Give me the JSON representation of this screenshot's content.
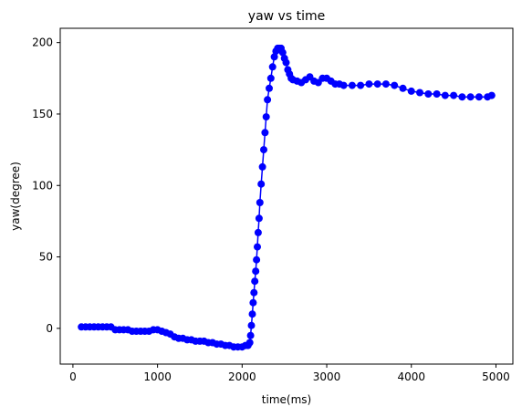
{
  "chart_data": {
    "type": "line",
    "title": "yaw vs time",
    "xlabel": "time(ms)",
    "ylabel": "yaw(degree)",
    "xlim": [
      -150,
      5200
    ],
    "ylim": [
      -25,
      210
    ],
    "xticks": [
      0,
      1000,
      2000,
      3000,
      4000,
      5000
    ],
    "yticks": [
      0,
      50,
      100,
      150,
      200
    ],
    "grid": false,
    "legend": null,
    "marker": "circle",
    "color": "#0000ff",
    "series": [
      {
        "x": [
          100,
          150,
          200,
          250,
          300,
          350,
          400,
          450,
          500,
          550,
          600,
          650,
          700,
          750,
          800,
          850,
          900,
          950,
          1000,
          1050,
          1100,
          1150,
          1200,
          1250,
          1300,
          1350,
          1400,
          1450,
          1500,
          1550,
          1600,
          1650,
          1700,
          1750,
          1800,
          1850,
          1900,
          1950,
          2000,
          2040,
          2070,
          2090,
          2100,
          2110,
          2120,
          2130,
          2140,
          2150,
          2160,
          2170,
          2180,
          2190,
          2200,
          2210,
          2225,
          2240,
          2255,
          2270,
          2285,
          2300,
          2320,
          2340,
          2360,
          2380,
          2400,
          2420,
          2440,
          2460,
          2480,
          2500,
          2520,
          2540,
          2560,
          2580,
          2600,
          2650,
          2700,
          2750,
          2800,
          2850,
          2900,
          2950,
          3000,
          3050,
          3100,
          3150,
          3200,
          3300,
          3400,
          3500,
          3600,
          3700,
          3800,
          3900,
          4000,
          4100,
          4200,
          4300,
          4400,
          4500,
          4600,
          4700,
          4800,
          4900,
          4950
        ],
        "y": [
          1,
          1,
          1,
          1,
          1,
          1,
          1,
          1,
          -1,
          -1,
          -1,
          -1,
          -2,
          -2,
          -2,
          -2,
          -2,
          -1,
          -1,
          -2,
          -3,
          -4,
          -6,
          -7,
          -7,
          -8,
          -8,
          -9,
          -9,
          -9,
          -10,
          -10,
          -11,
          -11,
          -12,
          -12,
          -13,
          -13,
          -13,
          -12,
          -12,
          -10,
          -5,
          2,
          10,
          18,
          25,
          33,
          40,
          48,
          57,
          67,
          77,
          88,
          101,
          113,
          125,
          137,
          148,
          160,
          168,
          175,
          183,
          190,
          194,
          196,
          196,
          196,
          193,
          189,
          186,
          181,
          178,
          175,
          174,
          173,
          172,
          174,
          176,
          173,
          172,
          175,
          175,
          173,
          171,
          171,
          170,
          170,
          170,
          171,
          171,
          171,
          170,
          168,
          166,
          165,
          164,
          164,
          163,
          163,
          162,
          162,
          162,
          162,
          163
        ]
      }
    ]
  }
}
